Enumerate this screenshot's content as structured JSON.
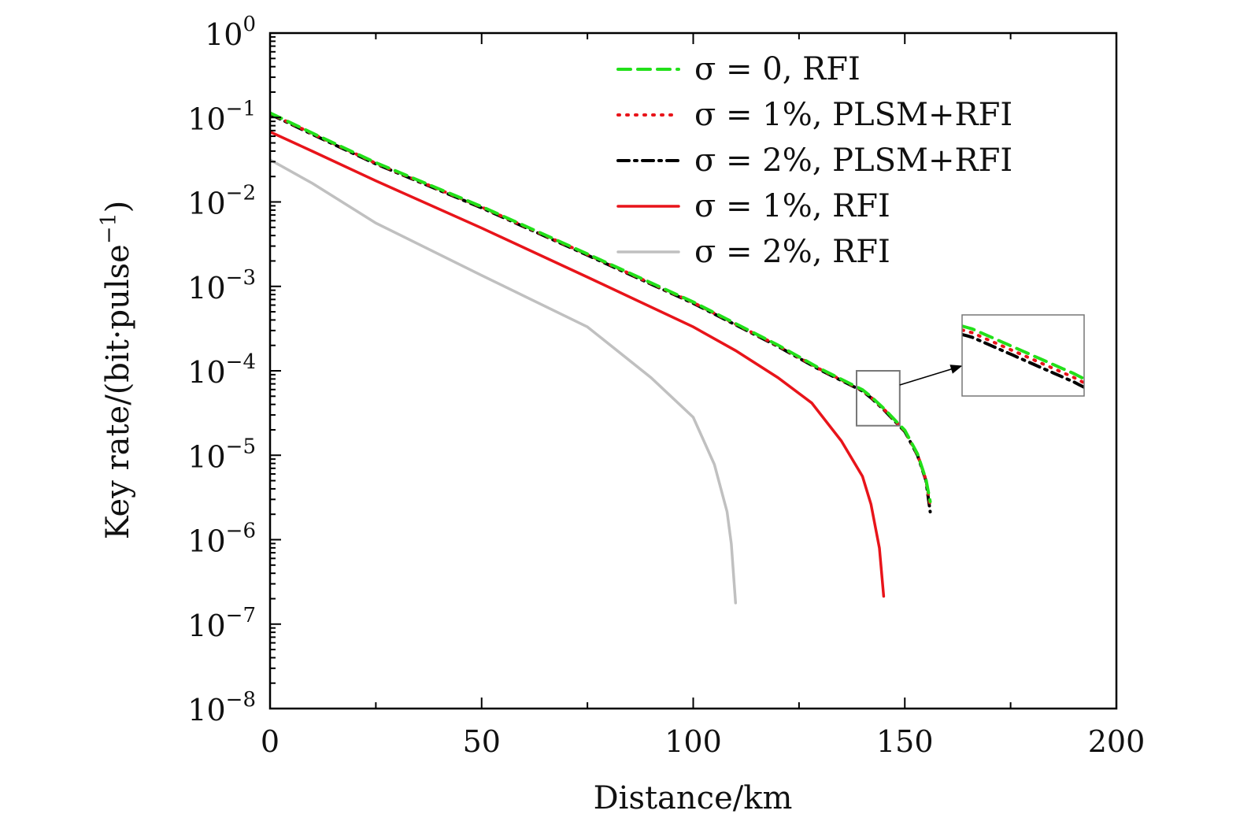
{
  "chart_data": {
    "type": "line",
    "title": "",
    "xlabel": "Distance/km",
    "ylabel": "Key rate/(bit·pulse",
    "ylabel_sup": "−1",
    "ylabel_close": ")",
    "xlim": [
      0,
      200
    ],
    "ylim_log10": [
      -8,
      0
    ],
    "yscale": "log",
    "grid": false,
    "legend_position": "top-right",
    "x_ticks": [
      0,
      50,
      100,
      150,
      200
    ],
    "x_tick_labels": [
      "0",
      "50",
      "100",
      "150",
      "200"
    ],
    "y_ticks_log10": [
      0,
      -1,
      -2,
      -3,
      -4,
      -5,
      -6,
      -7,
      -8
    ],
    "y_tick_labels": [
      {
        "base": "10",
        "exp": "0"
      },
      {
        "base": "10",
        "exp": "−1"
      },
      {
        "base": "10",
        "exp": "−2"
      },
      {
        "base": "10",
        "exp": "−3"
      },
      {
        "base": "10",
        "exp": "−4"
      },
      {
        "base": "10",
        "exp": "−5"
      },
      {
        "base": "10",
        "exp": "−6"
      },
      {
        "base": "10",
        "exp": "−7"
      },
      {
        "base": "10",
        "exp": "−8"
      }
    ],
    "series": [
      {
        "name": "σ = 0, RFI",
        "color": "#22e01a",
        "style": "dashed",
        "x": [
          0,
          10,
          25,
          50,
          75,
          100,
          120,
          130,
          140,
          142,
          145,
          150,
          153,
          155,
          156
        ],
        "log10_y": [
          -0.945,
          -1.185,
          -1.535,
          -2.055,
          -2.615,
          -3.185,
          -3.695,
          -3.975,
          -4.225,
          -4.305,
          -4.445,
          -4.705,
          -4.985,
          -5.285,
          -5.55
        ]
      },
      {
        "name": "σ = 1%, PLSM+RFI",
        "color": "#e8141a",
        "style": "dotted",
        "x": [
          0,
          10,
          25,
          50,
          75,
          100,
          120,
          130,
          140,
          142,
          145,
          150,
          153,
          155,
          156
        ],
        "log10_y": [
          -0.952,
          -1.192,
          -1.542,
          -2.062,
          -2.622,
          -3.192,
          -3.702,
          -3.982,
          -4.232,
          -4.312,
          -4.452,
          -4.712,
          -4.992,
          -5.292,
          -5.6
        ]
      },
      {
        "name": "σ = 2%, PLSM+RFI",
        "color": "#000000",
        "style": "dashdot",
        "x": [
          0,
          10,
          25,
          50,
          75,
          100,
          120,
          130,
          140,
          142,
          145,
          150,
          153,
          155,
          156
        ],
        "log10_y": [
          -0.96,
          -1.2,
          -1.55,
          -2.07,
          -2.63,
          -3.2,
          -3.71,
          -3.99,
          -4.24,
          -4.32,
          -4.46,
          -4.72,
          -5.0,
          -5.3,
          -5.67
        ]
      },
      {
        "name": "σ = 1%, RFI",
        "color": "#e8141a",
        "style": "solid",
        "x": [
          0,
          10,
          25,
          50,
          75,
          100,
          110,
          120,
          128,
          135,
          140,
          142,
          144,
          145
        ],
        "log10_y": [
          -1.17,
          -1.4,
          -1.75,
          -2.31,
          -2.89,
          -3.48,
          -3.76,
          -4.08,
          -4.38,
          -4.83,
          -5.25,
          -5.58,
          -6.1,
          -6.67
        ]
      },
      {
        "name": "σ = 2%, RFI",
        "color": "#c0c0c0",
        "style": "solid",
        "x": [
          0,
          10,
          25,
          50,
          75,
          90,
          100,
          105,
          108,
          109,
          110
        ],
        "log10_y": [
          -1.5,
          -1.78,
          -2.25,
          -2.87,
          -3.48,
          -4.08,
          -4.55,
          -5.11,
          -5.67,
          -6.05,
          -6.75
        ]
      }
    ],
    "inset": {
      "zoom_region": {
        "x": [
          138.6,
          148.8
        ],
        "log10_y": [
          -4.65,
          -4.0
        ]
      },
      "view": {
        "x": [
          139.8,
          142.2
        ],
        "log10_y": [
          -4.345,
          -4.2
        ]
      }
    }
  }
}
